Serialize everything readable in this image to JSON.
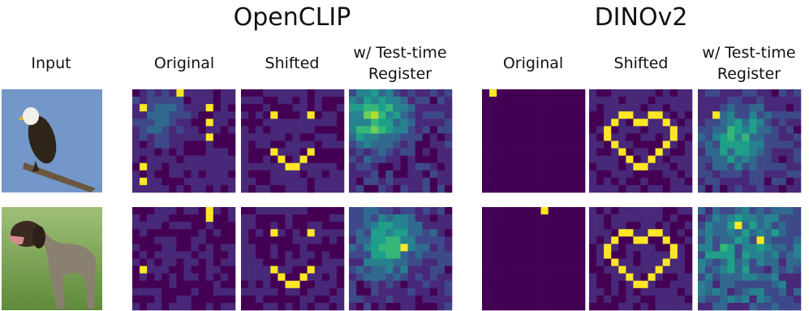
{
  "headings": {
    "openclip": "OpenCLIP",
    "dinov2": "DINOv2"
  },
  "columns": {
    "input": "Input",
    "openclip": [
      "Original",
      "Shifted",
      "w/ Test-time Register"
    ],
    "dinov2": [
      "Original",
      "Shifted",
      "w/ Test-time Register"
    ]
  }
}
